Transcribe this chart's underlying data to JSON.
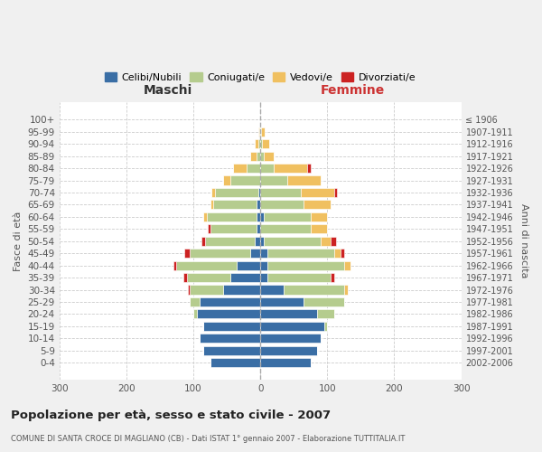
{
  "age_groups": [
    "0-4",
    "5-9",
    "10-14",
    "15-19",
    "20-24",
    "25-29",
    "30-34",
    "35-39",
    "40-44",
    "45-49",
    "50-54",
    "55-59",
    "60-64",
    "65-69",
    "70-74",
    "75-79",
    "80-84",
    "85-89",
    "90-94",
    "95-99",
    "100+"
  ],
  "birth_years": [
    "2002-2006",
    "1997-2001",
    "1992-1996",
    "1987-1991",
    "1982-1986",
    "1977-1981",
    "1972-1976",
    "1967-1971",
    "1962-1966",
    "1957-1961",
    "1952-1956",
    "1947-1951",
    "1942-1946",
    "1937-1941",
    "1932-1936",
    "1927-1931",
    "1922-1926",
    "1917-1921",
    "1912-1916",
    "1907-1911",
    "≤ 1906"
  ],
  "maschi": {
    "celibi": [
      75,
      85,
      90,
      85,
      95,
      90,
      55,
      45,
      35,
      15,
      8,
      5,
      5,
      5,
      3,
      0,
      0,
      0,
      0,
      0,
      0
    ],
    "coniugati": [
      0,
      0,
      0,
      0,
      5,
      15,
      50,
      65,
      90,
      90,
      75,
      70,
      75,
      65,
      65,
      45,
      20,
      5,
      3,
      1,
      0
    ],
    "vedovi": [
      0,
      0,
      0,
      0,
      0,
      0,
      0,
      0,
      0,
      0,
      0,
      0,
      5,
      5,
      5,
      10,
      20,
      10,
      5,
      2,
      0
    ],
    "divorziati": [
      0,
      0,
      0,
      0,
      0,
      0,
      3,
      5,
      5,
      8,
      5,
      3,
      0,
      0,
      0,
      0,
      0,
      0,
      0,
      0,
      0
    ]
  },
  "femmine": {
    "nubili": [
      75,
      85,
      90,
      95,
      85,
      65,
      35,
      10,
      10,
      10,
      5,
      0,
      5,
      0,
      0,
      0,
      0,
      0,
      0,
      0,
      0
    ],
    "coniugate": [
      0,
      0,
      0,
      5,
      25,
      60,
      90,
      95,
      115,
      100,
      85,
      75,
      70,
      65,
      60,
      40,
      20,
      5,
      3,
      1,
      0
    ],
    "vedove": [
      0,
      0,
      0,
      0,
      0,
      0,
      5,
      0,
      10,
      10,
      15,
      25,
      25,
      40,
      50,
      50,
      50,
      15,
      10,
      5,
      0
    ],
    "divorziate": [
      0,
      0,
      0,
      0,
      0,
      0,
      0,
      5,
      0,
      5,
      8,
      0,
      0,
      0,
      5,
      0,
      5,
      0,
      0,
      0,
      0
    ]
  },
  "colors": {
    "celibi": "#3a6ea5",
    "coniugati": "#b5cc8e",
    "vedovi": "#f0c060",
    "divorziati": "#cc2222"
  },
  "title": "Popolazione per età, sesso e stato civile - 2007",
  "subtitle": "COMUNE DI SANTA CROCE DI MAGLIANO (CB) - Dati ISTAT 1° gennaio 2007 - Elaborazione TUTTITALIA.IT",
  "ylabel_left": "Fasce di età",
  "ylabel_right": "Anni di nascita",
  "xlabel_left": "Maschi",
  "xlabel_right": "Femmine",
  "xlim": 300,
  "legend_labels": [
    "Celibi/Nubili",
    "Coniugati/e",
    "Vedovi/e",
    "Divorziati/e"
  ],
  "bg_color": "#f0f0f0",
  "plot_bg": "#ffffff"
}
